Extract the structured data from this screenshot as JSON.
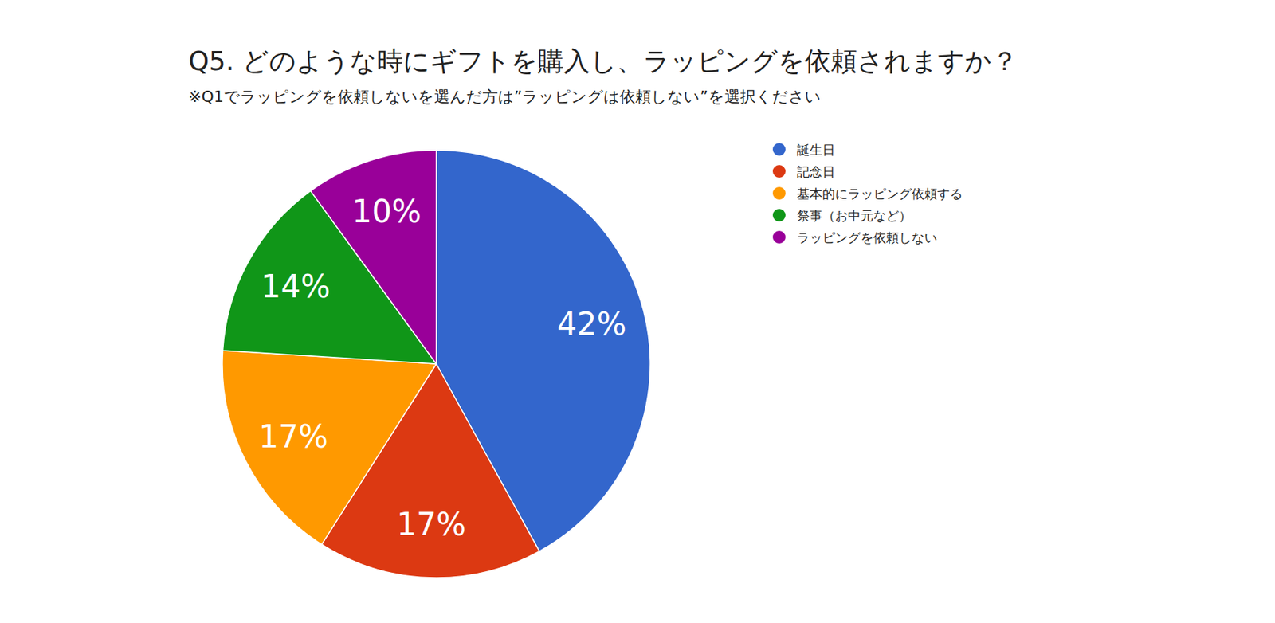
{
  "chart_data": {
    "type": "pie",
    "title": "Q5. どのような時にギフトを購入し、ラッピングを依頼されますか？",
    "subtitle": "※Q1でラッピングを依頼しないを選んだ方は”ラッピングは依頼しない”を選択ください",
    "categories": [
      "誕生日",
      "記念日",
      "基本的にラッピング依頼する",
      "祭事（お中元など）",
      "ラッピングを依頼しない"
    ],
    "values": [
      42,
      17,
      17,
      14,
      10
    ],
    "value_labels": [
      "42%",
      "17%",
      "17%",
      "14%",
      "10%"
    ],
    "colors": [
      "#3366cc",
      "#dc3912",
      "#ff9900",
      "#109618",
      "#990099"
    ],
    "data_labels": true,
    "legend": "top-right"
  }
}
